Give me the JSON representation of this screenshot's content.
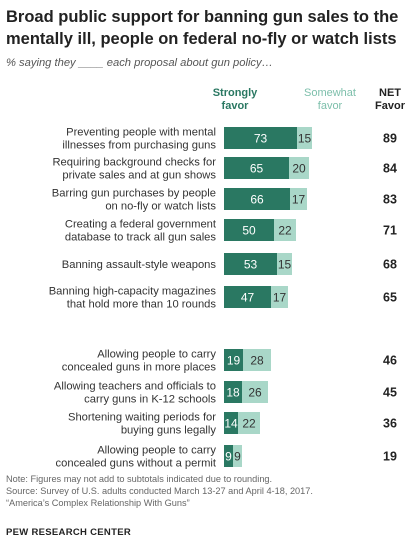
{
  "title": "Broad public support for banning gun sales to the mentally ill, people on federal no-fly or watch lists",
  "subtitle": "% saying they ____ each proposal about gun policy…",
  "colors": {
    "strong": "#2a7862",
    "somewhat": "#a9d7c8",
    "strong_text": "#ffffff",
    "somewhat_text": "#333333"
  },
  "chart_data": {
    "type": "bar",
    "orientation": "horizontal",
    "stacked": true,
    "legend_placement": "top",
    "legend": {
      "strong": "Strongly\nfavor",
      "somewhat": "Somewhat\nfavor",
      "net": "NET\nFavor"
    },
    "categories": [
      "Preventing people with mental\nillnesses from purchasing guns",
      "Requiring background checks for\nprivate sales and at gun shows",
      "Barring gun purchases by people\non no-fly or watch lists",
      "Creating a federal government\ndatabase to track all gun sales",
      "Banning assault-style weapons",
      "Banning high-capacity magazines\nthat hold more than 10 rounds",
      "Allowing people  to carry\nconcealed guns in more places",
      "Allowing teachers and officials to\ncarry guns in K-12 schools",
      "Shortening waiting periods for\nbuying guns legally",
      "Allowing people  to carry\nconcealed guns without a permit"
    ],
    "groups": [
      {
        "start": 0,
        "end": 5
      },
      {
        "start": 6,
        "end": 9
      }
    ],
    "series": [
      {
        "name": "Strongly favor",
        "values": [
          73,
          65,
          66,
          50,
          53,
          47,
          19,
          18,
          14,
          9
        ]
      },
      {
        "name": "Somewhat favor",
        "values": [
          15,
          20,
          17,
          22,
          15,
          17,
          28,
          26,
          22,
          9
        ]
      }
    ],
    "net": [
      89,
      84,
      83,
      71,
      68,
      65,
      46,
      45,
      36,
      19
    ],
    "xlim": [
      0,
      100
    ],
    "grid": false
  },
  "notes": {
    "note": "Note: Figures may not add to subtotals indicated due to rounding.",
    "source": "Source: Survey of U.S. adults conducted March 13-27 and April 4-18, 2017.",
    "report": "“America’s Complex Relationship With Guns”"
  },
  "footer": "PEW RESEARCH CENTER"
}
